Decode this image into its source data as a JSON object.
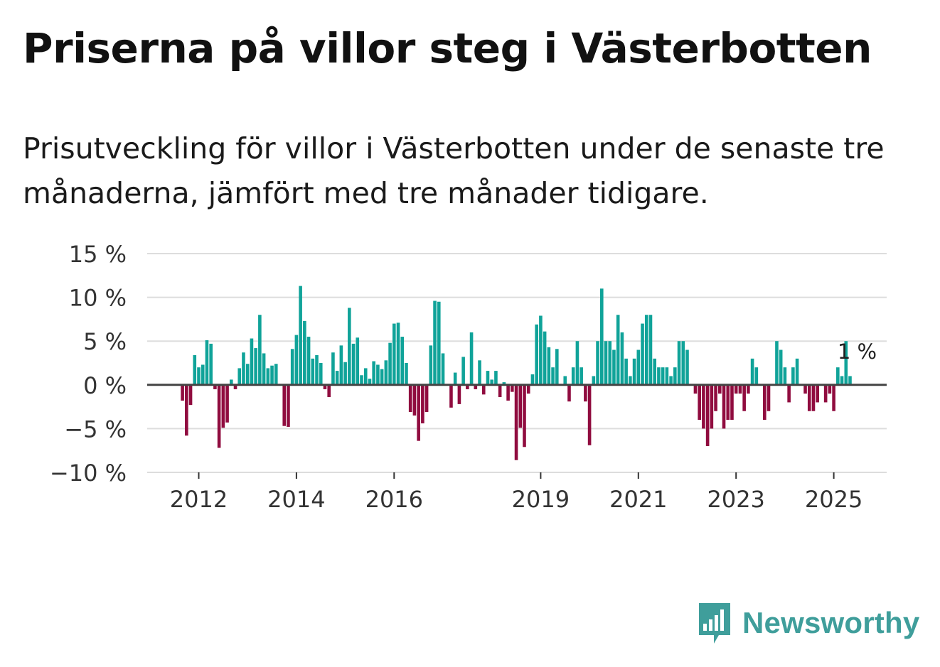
{
  "title": "Priserna på villor steg i Västerbotten",
  "subtitle": "Prisutveckling för villor i Västerbotten under de senaste tre månaderna, jämfört med tre månader tidigare.",
  "brand": {
    "name": "Newsworthy",
    "icon": "newsworthy-logo-icon"
  },
  "colors": {
    "positive": "#10a399",
    "negative": "#900c3f",
    "grid": "#dddddd",
    "zero_line": "#444444",
    "brand": "#3f9e9b"
  },
  "chart_data": {
    "type": "bar",
    "title": "Priserna på villor steg i Västerbotten",
    "xlabel": "",
    "ylabel": "",
    "x_start": "2011-09",
    "interval": "monthly",
    "ylim": [
      -10,
      15
    ],
    "y_ticks": [
      15,
      10,
      5,
      0,
      -5,
      -10
    ],
    "y_tick_labels": [
      "15 %",
      "10 %",
      "5 %",
      "0 %",
      "−5 %",
      "−10 %"
    ],
    "x_ticks": [
      {
        "index": 4,
        "label": "2012"
      },
      {
        "index": 28,
        "label": "2014"
      },
      {
        "index": 52,
        "label": "2016"
      },
      {
        "index": 88,
        "label": "2019"
      },
      {
        "index": 112,
        "label": "2021"
      },
      {
        "index": 136,
        "label": "2023"
      },
      {
        "index": 160,
        "label": "2025"
      }
    ],
    "last_value_label": "1 %",
    "values": [
      -1.8,
      -5.8,
      -2.3,
      3.4,
      2.0,
      2.3,
      5.1,
      4.7,
      -0.5,
      -7.2,
      -4.9,
      -4.3,
      0.6,
      -0.5,
      1.9,
      3.7,
      2.4,
      5.3,
      4.2,
      8.0,
      3.6,
      1.9,
      2.2,
      2.4,
      0.0,
      -4.7,
      -4.8,
      4.1,
      5.7,
      11.3,
      7.3,
      5.5,
      3.0,
      3.4,
      2.5,
      -0.5,
      -1.4,
      3.7,
      1.6,
      4.5,
      2.6,
      8.8,
      4.7,
      5.4,
      1.1,
      1.9,
      0.7,
      2.7,
      2.3,
      1.8,
      2.8,
      4.8,
      7.0,
      7.1,
      5.5,
      2.5,
      -3.1,
      -3.5,
      -6.4,
      -4.4,
      -3.1,
      4.5,
      9.6,
      9.5,
      3.6,
      0.0,
      -2.6,
      1.4,
      -2.2,
      3.2,
      -0.5,
      6.0,
      -0.5,
      2.8,
      -1.1,
      1.6,
      0.6,
      1.6,
      -1.4,
      0.3,
      -1.8,
      -0.8,
      -8.6,
      -4.9,
      -7.1,
      -1.0,
      1.2,
      6.9,
      7.9,
      6.1,
      4.3,
      2.0,
      4.1,
      0.0,
      1.0,
      -1.9,
      2.0,
      5.0,
      2.0,
      -1.9,
      -6.9,
      1.0,
      5.0,
      11.0,
      5.0,
      5.0,
      4.0,
      8.0,
      6.0,
      3.0,
      1.0,
      3.0,
      4.0,
      7.0,
      8.0,
      8.0,
      3.0,
      2.0,
      2.0,
      2.0,
      1.0,
      2.0,
      5.0,
      5.0,
      4.0,
      0.0,
      -1.0,
      -4.0,
      -5.0,
      -7.0,
      -5.0,
      -3.0,
      -1.0,
      -5.0,
      -4.0,
      -4.0,
      -1.0,
      -1.0,
      -3.0,
      -1.0,
      3.0,
      2.0,
      0.0,
      -4.0,
      -3.0,
      0.0,
      5.0,
      4.0,
      2.0,
      -2.0,
      2.0,
      3.0,
      0.0,
      -1.0,
      -3.0,
      -3.0,
      -2.0,
      0.0,
      -2.0,
      -1.0,
      -3.0,
      2.0,
      1.0,
      5.0,
      1.0
    ]
  }
}
